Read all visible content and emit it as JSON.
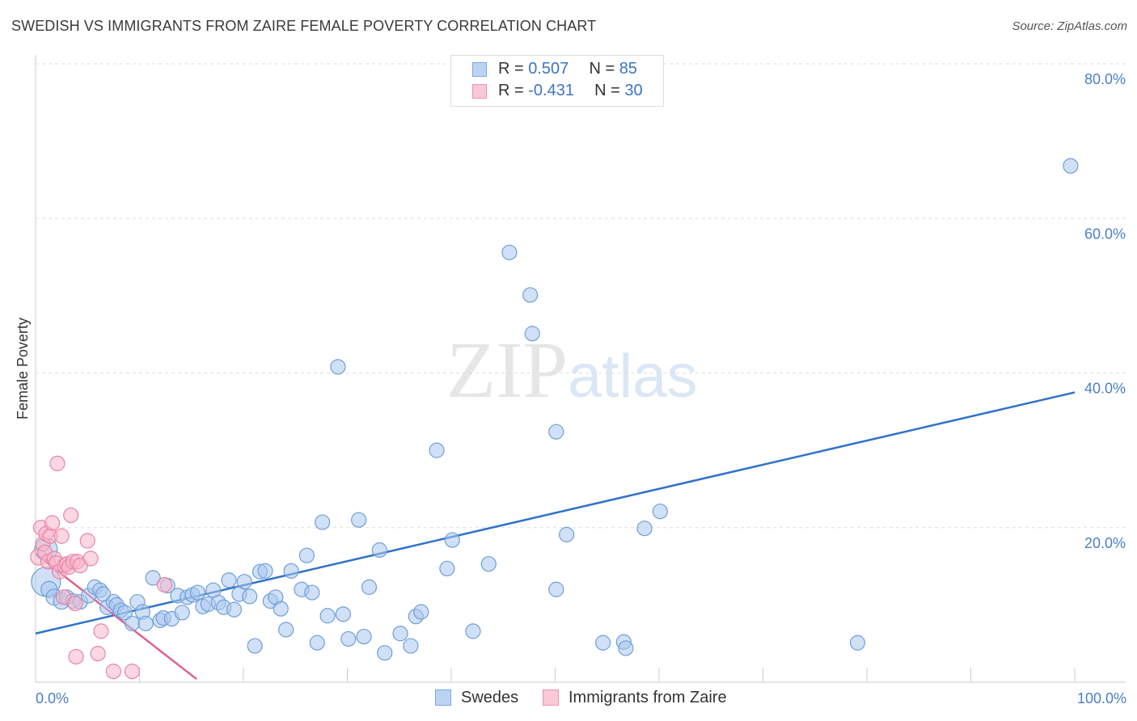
{
  "title": "SWEDISH VS IMMIGRANTS FROM ZAIRE FEMALE POVERTY CORRELATION CHART",
  "source": "Source: ZipAtlas.com",
  "watermark": {
    "zip": "ZIP",
    "atlas": "atlas"
  },
  "legend": {
    "series1": {
      "r_label": "R = ",
      "r_value": "0.507",
      "n_label": "N = ",
      "n_value": "85"
    },
    "series2": {
      "r_label": "R = ",
      "r_value": "-0.431",
      "n_label": "N = ",
      "n_value": "30"
    }
  },
  "bottom_legend": {
    "series1": "Swedes",
    "series2": "Immigrants from Zaire"
  },
  "colors": {
    "blue_fill": "#a9c7ee",
    "blue_stroke": "#6f9fd8",
    "blue_line": "#2f72c9",
    "pink_fill": "#f5b7ca",
    "pink_stroke": "#e884a4",
    "pink_line": "#e0608a",
    "grid": "#dddddd",
    "tick_text": "#4a7fc8"
  },
  "chart_data": {
    "type": "scatter",
    "title": "SWEDISH VS IMMIGRANTS FROM ZAIRE FEMALE POVERTY CORRELATION CHART",
    "xlabel": "",
    "ylabel": "Female Poverty",
    "xlim": [
      0,
      100
    ],
    "ylim": [
      0,
      80
    ],
    "x_tick_labels": [
      "0.0%",
      "100.0%"
    ],
    "y_ticks": [
      20,
      40,
      60,
      80
    ],
    "y_tick_labels": [
      "20.0%",
      "40.0%",
      "60.0%",
      "80.0%"
    ],
    "grid": true,
    "series": [
      {
        "name": "Swedes",
        "color": "#a9c7ee",
        "trend": {
          "x": [
            0,
            100
          ],
          "y": [
            6.3,
            37.5
          ]
        },
        "points": [
          [
            1.0,
            17.2,
            14
          ],
          [
            1.0,
            13.0,
            18
          ],
          [
            1.3,
            12.0,
            10
          ],
          [
            1.8,
            11.0,
            10
          ],
          [
            2.5,
            10.5,
            10
          ],
          [
            3.0,
            11.0,
            9
          ],
          [
            3.6,
            10.5,
            9
          ],
          [
            4.3,
            10.4,
            9
          ],
          [
            5.1,
            11.2,
            9
          ],
          [
            5.7,
            12.3,
            9
          ],
          [
            6.2,
            11.9,
            9
          ],
          [
            6.5,
            11.4,
            9
          ],
          [
            6.9,
            9.7,
            9
          ],
          [
            7.5,
            10.4,
            9
          ],
          [
            7.8,
            10.0,
            9
          ],
          [
            8.2,
            9.3,
            9
          ],
          [
            8.6,
            9.0,
            9
          ],
          [
            9.3,
            7.6,
            9
          ],
          [
            9.8,
            10.4,
            9
          ],
          [
            10.3,
            9.1,
            9
          ],
          [
            10.6,
            7.6,
            9
          ],
          [
            11.3,
            13.5,
            9
          ],
          [
            12.0,
            8.0,
            9
          ],
          [
            12.3,
            8.3,
            9
          ],
          [
            12.7,
            12.5,
            9
          ],
          [
            13.1,
            8.2,
            9
          ],
          [
            13.7,
            11.2,
            9
          ],
          [
            14.1,
            9.0,
            9
          ],
          [
            14.6,
            11.0,
            9
          ],
          [
            15.1,
            11.3,
            9
          ],
          [
            15.6,
            11.6,
            9
          ],
          [
            16.1,
            9.8,
            9
          ],
          [
            16.6,
            10.1,
            9
          ],
          [
            17.1,
            11.9,
            9
          ],
          [
            17.6,
            10.3,
            9
          ],
          [
            18.1,
            9.7,
            9
          ],
          [
            18.6,
            13.2,
            9
          ],
          [
            19.1,
            9.4,
            9
          ],
          [
            19.6,
            11.4,
            9
          ],
          [
            20.1,
            13.0,
            9
          ],
          [
            20.6,
            11.1,
            9
          ],
          [
            21.1,
            4.7,
            9
          ],
          [
            21.6,
            14.3,
            9
          ],
          [
            22.1,
            14.4,
            9
          ],
          [
            22.6,
            10.5,
            9
          ],
          [
            23.1,
            11.0,
            9
          ],
          [
            23.6,
            9.5,
            9
          ],
          [
            24.1,
            6.8,
            9
          ],
          [
            24.6,
            14.4,
            9
          ],
          [
            25.6,
            12.0,
            9
          ],
          [
            26.1,
            16.4,
            9
          ],
          [
            26.6,
            11.6,
            9
          ],
          [
            27.1,
            5.1,
            9
          ],
          [
            27.6,
            20.7,
            9
          ],
          [
            28.1,
            8.6,
            9
          ],
          [
            29.1,
            40.8,
            9
          ],
          [
            29.6,
            8.8,
            9
          ],
          [
            30.1,
            5.6,
            9
          ],
          [
            31.1,
            21.0,
            9
          ],
          [
            31.6,
            5.9,
            9
          ],
          [
            32.1,
            12.3,
            9
          ],
          [
            33.1,
            17.1,
            9
          ],
          [
            33.6,
            3.8,
            9
          ],
          [
            35.1,
            6.3,
            9
          ],
          [
            36.1,
            4.7,
            9
          ],
          [
            36.6,
            8.5,
            9
          ],
          [
            37.1,
            9.1,
            9
          ],
          [
            38.6,
            30.0,
            9
          ],
          [
            39.6,
            14.7,
            9
          ],
          [
            40.1,
            18.4,
            9
          ],
          [
            42.1,
            6.6,
            9
          ],
          [
            43.6,
            15.3,
            9
          ],
          [
            45.6,
            55.6,
            9
          ],
          [
            47.6,
            50.1,
            9
          ],
          [
            47.8,
            45.1,
            9
          ],
          [
            50.1,
            32.4,
            9
          ],
          [
            50.1,
            12.0,
            9
          ],
          [
            51.1,
            19.1,
            9
          ],
          [
            54.6,
            5.1,
            9
          ],
          [
            56.6,
            5.2,
            9
          ],
          [
            56.8,
            4.4,
            9
          ],
          [
            58.6,
            19.9,
            9
          ],
          [
            60.1,
            22.1,
            9
          ],
          [
            79.1,
            5.1,
            9
          ],
          [
            99.6,
            66.8,
            9
          ]
        ]
      },
      {
        "name": "Immigrants from Zaire",
        "color": "#f5b7ca",
        "trend": {
          "x": [
            0,
            15.5
          ],
          "y": [
            16.6,
            0.4
          ]
        },
        "points": [
          [
            0.3,
            16.2,
            10
          ],
          [
            0.5,
            20.0,
            9
          ],
          [
            0.7,
            17.9,
            9
          ],
          [
            0.9,
            16.8,
            9
          ],
          [
            1.0,
            19.2,
            9
          ],
          [
            1.2,
            15.6,
            9
          ],
          [
            1.4,
            18.9,
            9
          ],
          [
            1.6,
            20.6,
            9
          ],
          [
            1.8,
            16.0,
            9
          ],
          [
            2.0,
            15.4,
            9
          ],
          [
            2.1,
            28.3,
            9
          ],
          [
            2.3,
            14.3,
            9
          ],
          [
            2.5,
            18.9,
            9
          ],
          [
            2.7,
            11.0,
            9
          ],
          [
            2.8,
            15.1,
            9
          ],
          [
            3.0,
            15.3,
            9
          ],
          [
            3.2,
            14.9,
            9
          ],
          [
            3.4,
            21.6,
            9
          ],
          [
            3.6,
            15.6,
            9
          ],
          [
            3.8,
            10.2,
            9
          ],
          [
            4.0,
            15.6,
            9
          ],
          [
            4.3,
            15.1,
            9
          ],
          [
            5.0,
            18.3,
            9
          ],
          [
            5.3,
            16.0,
            9
          ],
          [
            6.0,
            3.7,
            9
          ],
          [
            3.9,
            3.3,
            9
          ],
          [
            6.3,
            6.6,
            9
          ],
          [
            7.5,
            1.4,
            9
          ],
          [
            9.3,
            1.4,
            9
          ],
          [
            12.4,
            12.6,
            9
          ]
        ]
      }
    ]
  }
}
